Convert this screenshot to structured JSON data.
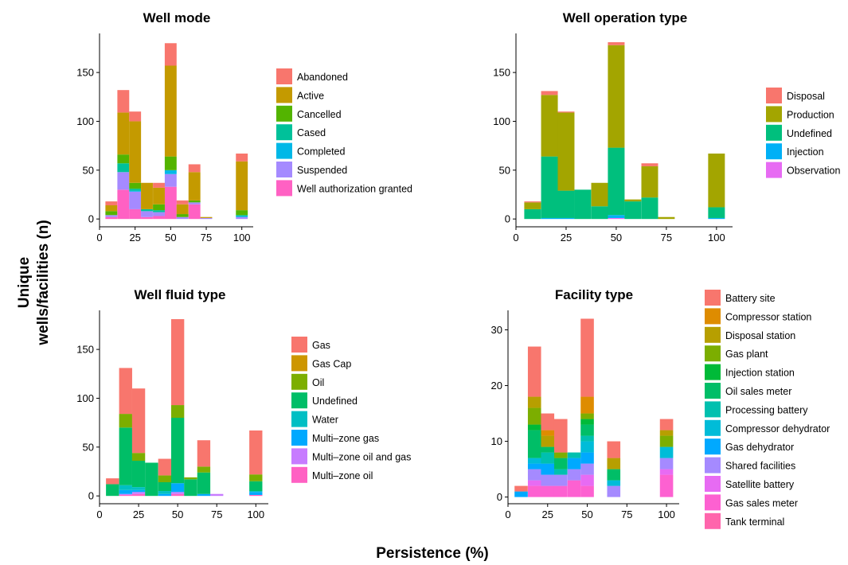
{
  "figure": {
    "x_title": "Persistence (%)",
    "y_title_lines": [
      "Unique",
      "wells/facilities (n)"
    ]
  },
  "chart_data": [
    {
      "type": "bar",
      "stacked": true,
      "title": "Well mode",
      "x_ticks": [
        0,
        25,
        50,
        75,
        100
      ],
      "y_ticks": [
        0,
        50,
        100,
        150
      ],
      "xlim": [
        0,
        108
      ],
      "ylim": [
        -8,
        190
      ],
      "x": [
        8.3,
        16.7,
        25,
        33.3,
        41.7,
        50,
        58.3,
        66.7,
        75,
        83.3,
        91.7,
        100
      ],
      "legend_position": "right",
      "series": [
        {
          "name": "Well authorization granted",
          "color": "#FF61C3",
          "values": [
            2,
            30,
            10,
            2,
            3,
            33,
            0,
            15,
            0,
            0,
            0,
            0
          ]
        },
        {
          "name": "Suspended",
          "color": "#A58AFF",
          "values": [
            2,
            18,
            18,
            6,
            4,
            13,
            2,
            2,
            1,
            0,
            0,
            2
          ]
        },
        {
          "name": "Completed",
          "color": "#00B8E7",
          "values": [
            0,
            0,
            1,
            0,
            0,
            4,
            0,
            0,
            0,
            0,
            0,
            1
          ]
        },
        {
          "name": "Cased",
          "color": "#00C19A",
          "values": [
            0,
            9,
            2,
            2,
            2,
            0,
            0,
            0,
            0,
            0,
            0,
            1
          ]
        },
        {
          "name": "Cancelled",
          "color": "#53B400",
          "values": [
            4,
            9,
            6,
            0,
            6,
            14,
            3,
            2,
            0,
            0,
            0,
            5
          ]
        },
        {
          "name": "Active",
          "color": "#C49A00",
          "values": [
            6,
            43,
            63,
            27,
            17,
            93,
            10,
            29,
            1,
            0,
            0,
            50
          ]
        },
        {
          "name": "Abandoned",
          "color": "#F8766D",
          "values": [
            4,
            23,
            10,
            0,
            5,
            23,
            4,
            8,
            0,
            0,
            0,
            8
          ]
        }
      ]
    },
    {
      "type": "bar",
      "stacked": true,
      "title": "Well operation type",
      "x_ticks": [
        0,
        25,
        50,
        75,
        100
      ],
      "y_ticks": [
        0,
        50,
        100,
        150
      ],
      "xlim": [
        0,
        108
      ],
      "ylim": [
        -8,
        190
      ],
      "x": [
        8.3,
        16.7,
        25,
        33.3,
        41.7,
        50,
        58.3,
        66.7,
        75,
        83.3,
        91.7,
        100
      ],
      "legend_position": "right",
      "series": [
        {
          "name": "Observation",
          "color": "#E76BF3",
          "values": [
            0,
            0,
            0,
            0,
            0,
            1,
            0,
            0,
            0,
            0,
            0,
            0
          ]
        },
        {
          "name": "Injection",
          "color": "#00B0F6",
          "values": [
            0,
            1,
            1,
            0,
            0,
            3,
            0,
            0,
            0,
            0,
            0,
            1
          ]
        },
        {
          "name": "Undefined",
          "color": "#00BF7D",
          "values": [
            10,
            63,
            28,
            30,
            13,
            69,
            18,
            22,
            0,
            0,
            0,
            11
          ]
        },
        {
          "name": "Production",
          "color": "#A3A500",
          "values": [
            7,
            63,
            80,
            0,
            24,
            105,
            2,
            32,
            2,
            0,
            0,
            55
          ]
        },
        {
          "name": "Disposal",
          "color": "#F8766D",
          "values": [
            1,
            4,
            1,
            0,
            0,
            3,
            0,
            3,
            0,
            0,
            0,
            0
          ]
        }
      ]
    },
    {
      "type": "bar",
      "stacked": true,
      "title": "Well fluid type",
      "x_ticks": [
        0,
        25,
        50,
        75,
        100
      ],
      "y_ticks": [
        0,
        50,
        100,
        150
      ],
      "xlim": [
        0,
        108
      ],
      "ylim": [
        -8,
        190
      ],
      "x": [
        8.3,
        16.7,
        25,
        33.3,
        41.7,
        50,
        58.3,
        66.7,
        75,
        83.3,
        91.7,
        100
      ],
      "legend_position": "right",
      "series": [
        {
          "name": "Multi–zone oil",
          "color": "#FF61C3",
          "values": [
            0,
            1,
            2,
            0,
            0,
            2,
            0,
            0,
            0,
            0,
            0,
            1
          ]
        },
        {
          "name": "Multi–zone oil and gas",
          "color": "#C77CFF",
          "values": [
            0,
            1,
            2,
            0,
            0,
            2,
            0,
            0,
            2,
            0,
            0,
            0
          ]
        },
        {
          "name": "Multi–zone gas",
          "color": "#00A9FF",
          "values": [
            0,
            4,
            2,
            0,
            2,
            9,
            0,
            2,
            0,
            0,
            0,
            3
          ]
        },
        {
          "name": "Water",
          "color": "#00BFC4",
          "values": [
            0,
            5,
            3,
            0,
            3,
            0,
            0,
            0,
            0,
            0,
            0,
            1
          ]
        },
        {
          "name": "Undefined",
          "color": "#00BE67",
          "values": [
            12,
            59,
            27,
            34,
            9,
            67,
            17,
            22,
            0,
            0,
            0,
            10
          ]
        },
        {
          "name": "Oil",
          "color": "#7CAE00",
          "values": [
            0,
            14,
            8,
            0,
            7,
            13,
            2,
            6,
            0,
            0,
            0,
            7
          ]
        },
        {
          "name": "Gas Cap",
          "color": "#CD9600",
          "values": [
            0,
            0,
            0,
            0,
            0,
            0,
            0,
            0,
            0,
            0,
            0,
            0
          ]
        },
        {
          "name": "Gas",
          "color": "#F8766D",
          "values": [
            6,
            47,
            66,
            0,
            17,
            88,
            0,
            27,
            0,
            0,
            0,
            45
          ]
        }
      ]
    },
    {
      "type": "bar",
      "stacked": true,
      "title": "Facility type",
      "x_ticks": [
        0,
        25,
        50,
        75,
        100
      ],
      "y_ticks": [
        0,
        10,
        20,
        30
      ],
      "xlim": [
        0,
        108
      ],
      "ylim": [
        -1.2,
        33.5
      ],
      "x": [
        8.3,
        16.7,
        25,
        33.3,
        41.7,
        50,
        58.3,
        66.7,
        75,
        83.3,
        91.7,
        100
      ],
      "legend_position": "right",
      "series": [
        {
          "name": "Tank terminal",
          "color": "#FF65AC",
          "values": [
            0,
            0,
            0,
            0,
            0,
            0,
            0,
            0,
            0,
            0,
            0,
            0
          ]
        },
        {
          "name": "Gas sales meter",
          "color": "#FD61D1",
          "values": [
            0,
            2,
            2,
            2,
            3,
            2,
            0,
            0,
            0,
            0,
            0,
            4
          ]
        },
        {
          "name": "Satellite battery",
          "color": "#E76BF3",
          "values": [
            0,
            1,
            0,
            0,
            0,
            2,
            0,
            0,
            0,
            0,
            0,
            1
          ]
        },
        {
          "name": "Shared facilities",
          "color": "#A58AFF",
          "values": [
            0,
            2,
            2,
            2,
            2,
            2,
            0,
            2,
            0,
            0,
            0,
            2
          ]
        },
        {
          "name": "Gas dehydrator",
          "color": "#00A9FF",
          "values": [
            1,
            1,
            2,
            0,
            2,
            2,
            0,
            0,
            0,
            0,
            0,
            0
          ]
        },
        {
          "name": "Compressor dehydrator",
          "color": "#00BCD8",
          "values": [
            0,
            1,
            0,
            0,
            0,
            2,
            0,
            1,
            0,
            0,
            0,
            2
          ]
        },
        {
          "name": "Processing battery",
          "color": "#00C0AF",
          "values": [
            0,
            0,
            2,
            1,
            1,
            1,
            0,
            0,
            0,
            0,
            0,
            0
          ]
        },
        {
          "name": "Oil sales meter",
          "color": "#00BE67",
          "values": [
            0,
            5,
            1,
            2,
            0,
            2,
            0,
            2,
            0,
            0,
            0,
            0
          ]
        },
        {
          "name": "Injection station",
          "color": "#00BA38",
          "values": [
            0,
            1,
            0,
            0,
            0,
            1,
            0,
            0,
            0,
            0,
            0,
            0
          ]
        },
        {
          "name": "Gas plant",
          "color": "#7CAE00",
          "values": [
            0,
            3,
            0,
            1,
            0,
            1,
            0,
            0,
            0,
            0,
            0,
            2
          ]
        },
        {
          "name": "Disposal station",
          "color": "#B79F00",
          "values": [
            0,
            2,
            2,
            0,
            0,
            0,
            0,
            2,
            0,
            0,
            0,
            1
          ]
        },
        {
          "name": "Compressor station",
          "color": "#DE8C00",
          "values": [
            0,
            0,
            1,
            0,
            0,
            3,
            0,
            0,
            0,
            0,
            0,
            0
          ]
        },
        {
          "name": "Battery site",
          "color": "#F8766D",
          "values": [
            1,
            9,
            3,
            6,
            0,
            14,
            0,
            3,
            0,
            0,
            0,
            2
          ]
        }
      ]
    }
  ]
}
